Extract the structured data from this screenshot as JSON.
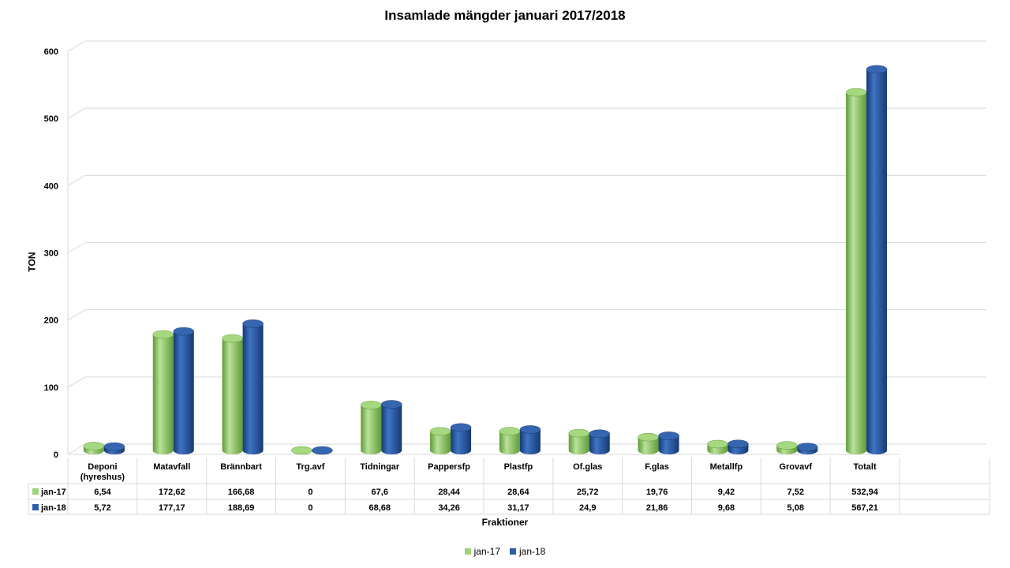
{
  "chart_data": {
    "type": "bar",
    "title": "Insamlade mängder januari 2017/2018",
    "xlabel": "Fraktioner",
    "ylabel": "TON",
    "ylim": [
      0,
      600
    ],
    "yticks": [
      "0",
      "100",
      "200",
      "300",
      "400",
      "500",
      "600"
    ],
    "categories": [
      "Deponi (hyreshus)",
      "Matavfall",
      "Brännbart",
      "Trg.avf",
      "Tidningar",
      "Pappersfp",
      "Plastfp",
      "Of.glas",
      "F.glas",
      "Metallfp",
      "Grovavf",
      "Totalt"
    ],
    "series": [
      {
        "name": "jan-17",
        "color": "#9fd27a",
        "values": [
          6.54,
          172.62,
          166.68,
          0,
          67.6,
          28.44,
          28.64,
          25.72,
          19.76,
          9.42,
          7.52,
          532.94
        ],
        "labels": [
          "6,54",
          "172,62",
          "166,68",
          "0",
          "67,6",
          "28,44",
          "28,64",
          "25,72",
          "19,76",
          "9,42",
          "7,52",
          "532,94"
        ]
      },
      {
        "name": "jan-18",
        "color": "#2e5ea8",
        "values": [
          5.72,
          177.17,
          188.69,
          0,
          68.68,
          34.26,
          31.17,
          24.9,
          21.86,
          9.68,
          5.08,
          567.21
        ],
        "labels": [
          "5,72",
          "177,17",
          "188,69",
          "0",
          "68,68",
          "34,26",
          "31,17",
          "24,9",
          "21,86",
          "9,68",
          "5,08",
          "567,21"
        ]
      }
    ],
    "grid": true,
    "legend_position": "bottom",
    "data_table": true
  }
}
